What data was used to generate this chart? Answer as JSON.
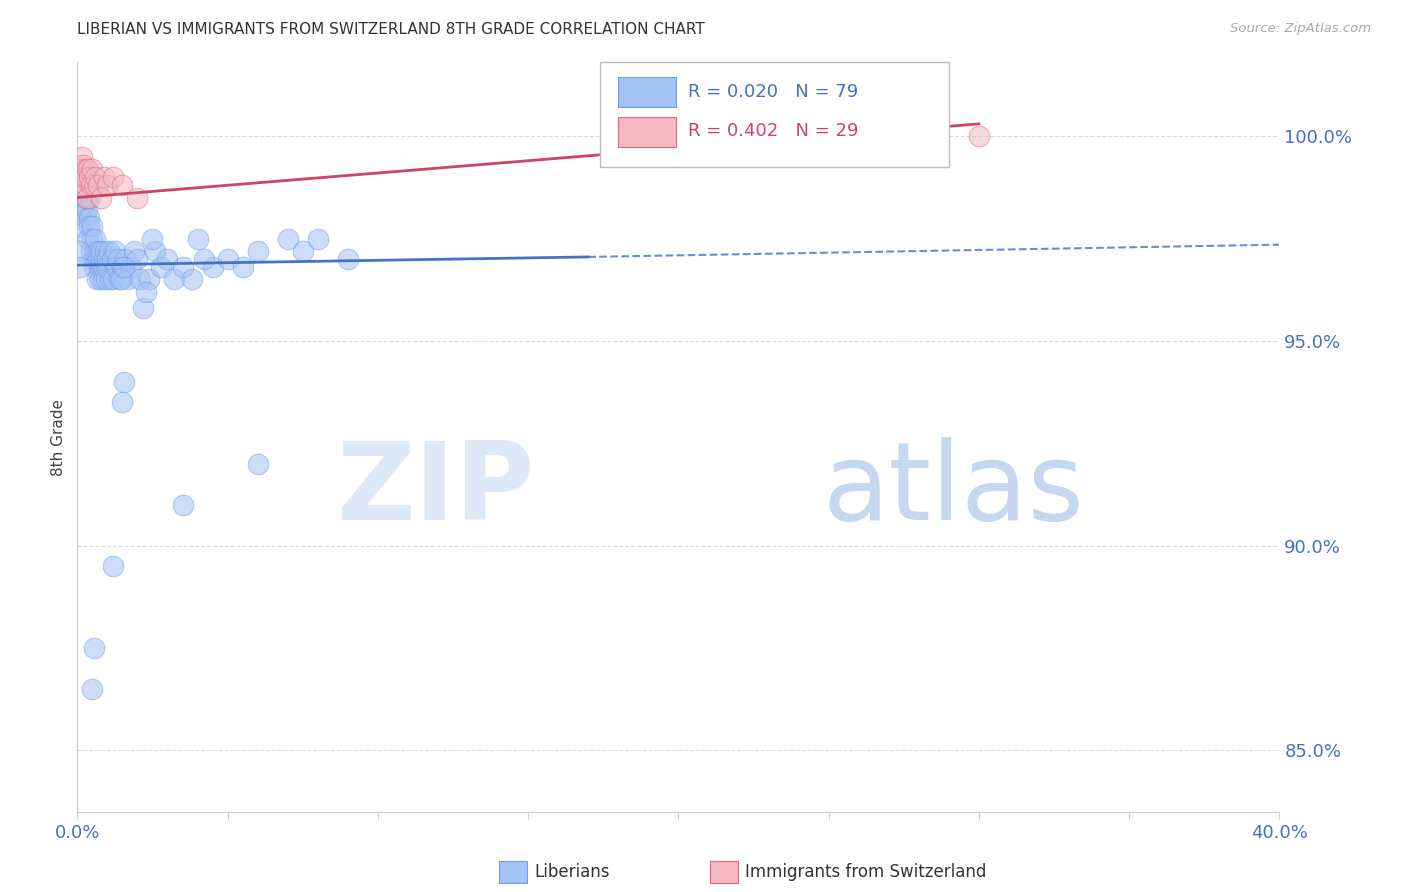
{
  "title": "LIBERIAN VS IMMIGRANTS FROM SWITZERLAND 8TH GRADE CORRELATION CHART",
  "source": "Source: ZipAtlas.com",
  "ylabel": "8th Grade",
  "yticks": [
    85.0,
    90.0,
    95.0,
    100.0
  ],
  "xlim": [
    0.0,
    40.0
  ],
  "ylim": [
    83.5,
    101.8
  ],
  "r_liberian": 0.02,
  "n_liberian": 79,
  "r_swiss": 0.402,
  "n_swiss": 29,
  "legend_label_blue": "Liberians",
  "legend_label_pink": "Immigrants from Switzerland",
  "blue_fill": "#a4c2f4",
  "pink_fill": "#f4b8c1",
  "blue_edge": "#6d9eeb",
  "pink_edge": "#e06880",
  "trend_blue": "#4472c4",
  "trend_pink": "#cc4466",
  "axis_tick_color": "#4472c4",
  "watermark_zip_color": "#dde8f8",
  "watermark_atlas_color": "#c5d8f0",
  "grid_color": "#cccccc",
  "liberian_x": [
    0.05,
    0.08,
    0.1,
    0.12,
    0.15,
    0.18,
    0.2,
    0.22,
    0.25,
    0.28,
    0.3,
    0.32,
    0.35,
    0.38,
    0.4,
    0.42,
    0.45,
    0.48,
    0.5,
    0.52,
    0.55,
    0.58,
    0.6,
    0.62,
    0.65,
    0.68,
    0.7,
    0.72,
    0.75,
    0.78,
    0.8,
    0.82,
    0.85,
    0.88,
    0.9,
    0.92,
    0.95,
    0.98,
    1.0,
    1.05,
    1.1,
    1.15,
    1.2,
    1.25,
    1.3,
    1.35,
    1.4,
    1.5,
    1.6,
    1.7,
    1.8,
    1.9,
    2.0,
    2.1,
    2.2,
    2.4,
    2.6,
    2.8,
    3.0,
    3.2,
    3.5,
    4.0,
    4.5,
    5.0,
    5.5,
    6.0,
    7.0,
    7.5,
    8.0,
    9.0,
    2.3,
    2.5,
    3.8,
    4.2,
    1.45,
    1.55,
    0.06,
    0.09
  ],
  "liberian_y": [
    97.8,
    98.2,
    99.0,
    98.5,
    99.2,
    98.8,
    99.0,
    98.3,
    98.5,
    98.0,
    98.8,
    98.2,
    97.5,
    98.0,
    97.8,
    98.5,
    97.2,
    97.8,
    97.5,
    97.0,
    96.8,
    97.2,
    97.5,
    97.0,
    96.5,
    97.0,
    97.2,
    96.8,
    96.5,
    97.0,
    97.2,
    96.8,
    96.5,
    97.0,
    96.8,
    97.2,
    96.5,
    97.0,
    96.8,
    97.2,
    96.5,
    97.0,
    96.5,
    97.2,
    96.8,
    97.0,
    96.5,
    96.8,
    97.0,
    96.5,
    96.8,
    97.2,
    97.0,
    96.5,
    95.8,
    96.5,
    97.2,
    96.8,
    97.0,
    96.5,
    96.8,
    97.5,
    96.8,
    97.0,
    96.8,
    97.2,
    97.5,
    97.2,
    97.5,
    97.0,
    96.2,
    97.5,
    96.5,
    97.0,
    96.5,
    96.8,
    97.2,
    96.8
  ],
  "liberian_x_outliers": [
    0.5,
    0.55,
    1.2,
    3.5,
    6.0,
    1.5,
    1.55
  ],
  "liberian_y_outliers": [
    86.5,
    87.5,
    89.5,
    91.0,
    92.0,
    93.5,
    94.0
  ],
  "swiss_x": [
    0.08,
    0.1,
    0.12,
    0.15,
    0.18,
    0.2,
    0.22,
    0.25,
    0.28,
    0.3,
    0.32,
    0.35,
    0.4,
    0.45,
    0.5,
    0.55,
    0.6,
    0.7,
    0.8,
    0.9,
    1.0,
    1.2,
    1.5,
    2.0,
    22.0,
    30.0
  ],
  "swiss_y": [
    99.0,
    99.2,
    98.8,
    99.5,
    99.0,
    99.3,
    99.0,
    98.8,
    99.2,
    99.0,
    98.5,
    99.2,
    99.0,
    98.8,
    99.2,
    98.8,
    99.0,
    98.8,
    98.5,
    99.0,
    98.8,
    99.0,
    98.8,
    98.5,
    100.2,
    100.0
  ],
  "trend_blue_x0": 0.0,
  "trend_blue_y0": 96.85,
  "trend_blue_x1": 17.0,
  "trend_blue_y1": 97.05,
  "trend_blue_xdash0": 17.0,
  "trend_blue_ydash0": 97.05,
  "trend_blue_xdash1": 40.0,
  "trend_blue_ydash1": 97.35,
  "trend_pink_x0": 0.0,
  "trend_pink_y0": 98.5,
  "trend_pink_x1": 30.0,
  "trend_pink_y1": 100.3
}
